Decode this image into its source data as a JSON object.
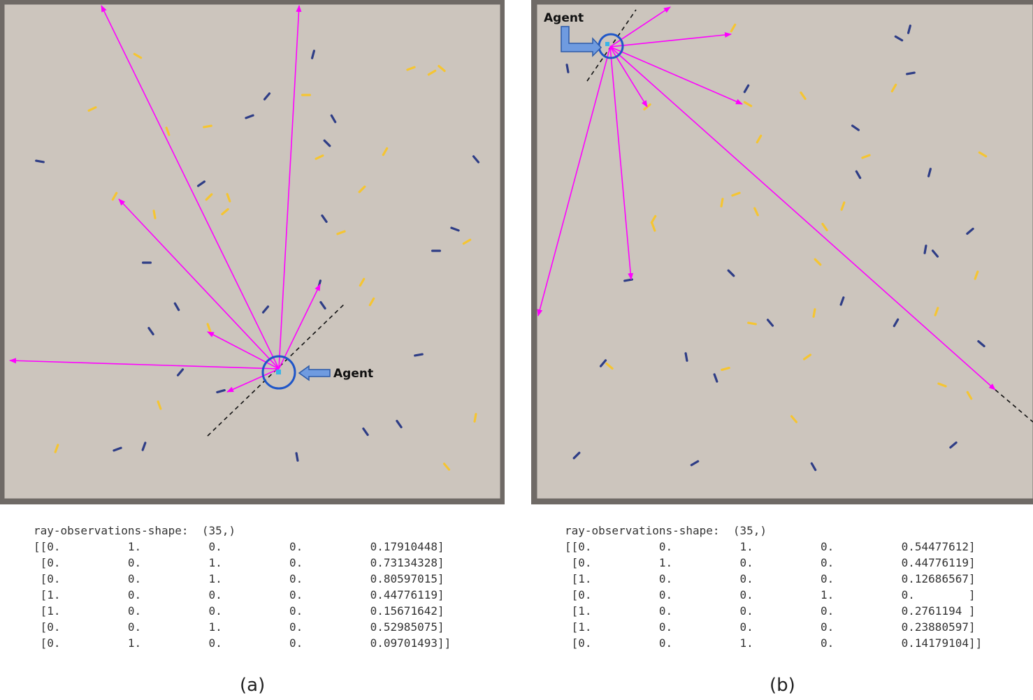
{
  "colors": {
    "frame": "#6f6a66",
    "field": "#ccc5bd",
    "ray": "#ff00ff",
    "agent_ring": "#1f56c8",
    "agent_body": "#39b4e8",
    "callout_fill": "#6f9be0",
    "callout_stroke": "#2c5aa8",
    "item_yellow": "#f5c532",
    "item_blue": "#2e3d86"
  },
  "panels": [
    {
      "id": "a",
      "agent_label": "Agent",
      "caption": "(a)",
      "obs_header": "ray-observations-shape:  (35,)",
      "obs_rows": [
        "[[0.          1.          0.          0.          0.17910448]",
        " [0.          0.          1.          0.          0.73134328]",
        " [0.          0.          1.          0.          0.80597015]",
        " [1.          0.          0.          0.          0.44776119]",
        " [1.          0.          0.          0.          0.15671642]",
        " [0.          0.          1.          0.          0.52985075]",
        " [0.          1.          0.          0.          0.09701493]]"
      ]
    },
    {
      "id": "b",
      "agent_label": "Agent",
      "caption": "(b)",
      "obs_header": "ray-observations-shape:  (35,)",
      "obs_rows": [
        "[[0.          0.          1.          0.          0.54477612]",
        " [0.          1.          0.          0.          0.44776119]",
        " [1.          0.          0.          0.          0.12686567]",
        " [0.          0.          0.          1.          0.        ]",
        " [1.          0.          0.          0.          0.2761194 ]",
        " [1.          0.          0.          0.          0.23880597]",
        " [0.          0.          1.          0.          0.14179104]]"
      ]
    }
  ]
}
